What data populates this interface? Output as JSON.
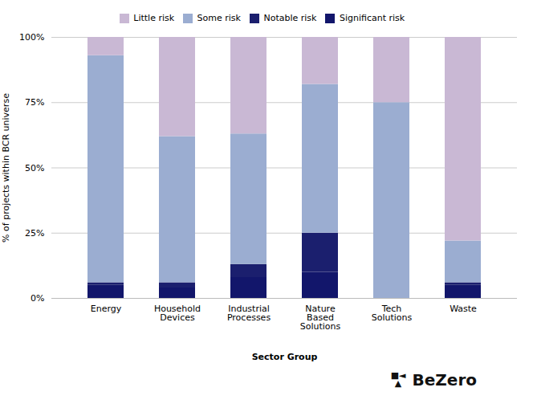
{
  "chart_data": {
    "type": "bar",
    "stacked": true,
    "categories": [
      "Energy",
      "Household\nDevices",
      "Industrial\nProcesses",
      "Nature\nBased\nSolutions",
      "Tech\nSolutions",
      "Waste"
    ],
    "series": [
      {
        "name": "Significant risk",
        "color": "#12166b",
        "values": [
          5,
          4,
          8,
          10,
          0,
          5
        ]
      },
      {
        "name": "Notable risk",
        "color": "#1b1f6e",
        "values": [
          1,
          2,
          5,
          15,
          0,
          1
        ]
      },
      {
        "name": "Some risk",
        "color": "#9badd1",
        "values": [
          87,
          56,
          50,
          57,
          75,
          16
        ]
      },
      {
        "name": "Little risk",
        "color": "#c9b8d4",
        "values": [
          7,
          38,
          37,
          18,
          25,
          78
        ]
      }
    ],
    "xlabel": "Sector Group",
    "ylabel": "% of projects within BCR universe",
    "ylim": [
      0,
      100
    ],
    "yticks": [
      {
        "value": 0,
        "label": "0%"
      },
      {
        "value": 25,
        "label": "25%"
      },
      {
        "value": 50,
        "label": "50%"
      },
      {
        "value": 75,
        "label": "75%"
      },
      {
        "value": 100,
        "label": "100%"
      }
    ],
    "grid": true,
    "legend": "top",
    "annotations": [
      "■◄\n▲",
      "BeZero"
    ]
  }
}
